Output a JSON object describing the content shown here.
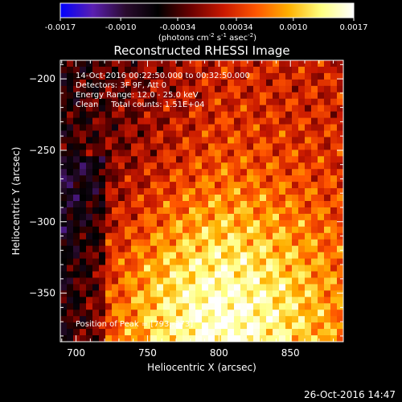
{
  "chart_data": {
    "type": "heatmap",
    "title": "Reconstructed RHESSI Image",
    "xlabel": "Heliocentric X (arcsec)",
    "ylabel": "Heliocentric Y (arcsec)",
    "xlim": [
      689,
      887
    ],
    "ylim": [
      -384,
      -187
    ],
    "x_ticks": [
      700,
      750,
      800,
      850
    ],
    "y_ticks": [
      -200,
      -250,
      -300,
      -350
    ],
    "annotations": [
      "14-Oct-2016 00:22:50.000 to 00:32:50.000",
      "Detectors: 3F 9F, Att 0",
      "Energy Range: 12.0 - 25.0 keV",
      "Clean     Total counts: 1.51E+04"
    ],
    "peak_label": "Position of Peak = [793,-373]",
    "peak": {
      "x": 793,
      "y": -373
    },
    "colorbar": {
      "ticks": [
        "-0.0017",
        "-0.0010",
        "-0.00034",
        "0.00034",
        "0.0010",
        "0.0017"
      ],
      "range": [
        -0.0017,
        0.0017
      ],
      "units_line": "(photons cm",
      "units_exp1": "-2",
      "units_mid": " s",
      "units_exp2": "-1",
      "units_mid2": " asec",
      "units_exp3": "-2",
      "units_end": ")",
      "colors": [
        "#0000ff",
        "#5a1fb0",
        "#2a0b2e",
        "#000000",
        "#6a0000",
        "#c81800",
        "#ff5500",
        "#ffb000",
        "#ffff80",
        "#ffffff"
      ]
    },
    "map_stats": {
      "background_level": 0.3,
      "peak_level": 1.0
    }
  },
  "footer_timestamp": "26-Oct-2016 14:47"
}
